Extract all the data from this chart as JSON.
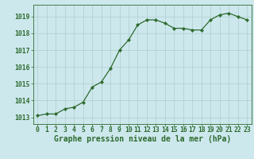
{
  "x": [
    0,
    1,
    2,
    3,
    4,
    5,
    6,
    7,
    8,
    9,
    10,
    11,
    12,
    13,
    14,
    15,
    16,
    17,
    18,
    19,
    20,
    21,
    22,
    23
  ],
  "y": [
    1013.1,
    1013.2,
    1013.2,
    1013.5,
    1013.6,
    1013.9,
    1014.8,
    1015.1,
    1015.9,
    1017.0,
    1017.6,
    1018.5,
    1018.8,
    1018.8,
    1018.6,
    1018.3,
    1018.3,
    1018.2,
    1018.2,
    1018.8,
    1019.1,
    1019.2,
    1019.0,
    1018.8
  ],
  "line_color": "#2d6a2d",
  "marker_color": "#2d6a2d",
  "bg_color": "#cde8ed",
  "grid_color": "#b0cccc",
  "axis_color": "#2d6a2d",
  "text_color": "#2d6a2d",
  "xlabel": "Graphe pression niveau de la mer (hPa)",
  "ylim": [
    1012.6,
    1019.7
  ],
  "yticks": [
    1013,
    1014,
    1015,
    1016,
    1017,
    1018,
    1019
  ],
  "xticks": [
    0,
    1,
    2,
    3,
    4,
    5,
    6,
    7,
    8,
    9,
    10,
    11,
    12,
    13,
    14,
    15,
    16,
    17,
    18,
    19,
    20,
    21,
    22,
    23
  ],
  "xlabel_fontsize": 7.0,
  "tick_fontsize": 5.8,
  "marker_size": 2.2,
  "line_width": 0.9
}
